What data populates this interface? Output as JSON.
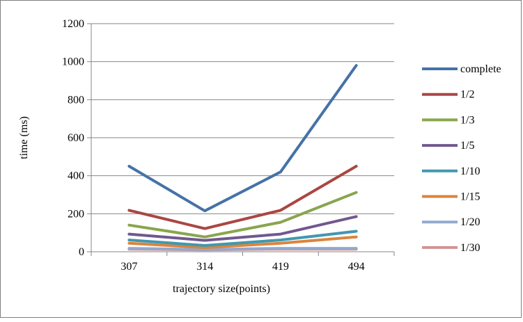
{
  "chart_data": {
    "type": "line",
    "title": "",
    "xlabel": "trajectory size(points)",
    "ylabel": "time (ms)",
    "categories": [
      "307",
      "314",
      "419",
      "494"
    ],
    "ylim": [
      0,
      1200
    ],
    "yticks": [
      0,
      200,
      400,
      600,
      800,
      1000,
      1200
    ],
    "grid": true,
    "legend_position": "right",
    "series": [
      {
        "name": "complete",
        "color": "#4572A7",
        "values": [
          450,
          215,
          420,
          980
        ]
      },
      {
        "name": "1/2",
        "color": "#AA4643",
        "values": [
          218,
          122,
          218,
          450
        ]
      },
      {
        "name": "1/3",
        "color": "#89A54E",
        "values": [
          140,
          78,
          155,
          312
        ]
      },
      {
        "name": "1/5",
        "color": "#71588F",
        "values": [
          93,
          60,
          93,
          185
        ]
      },
      {
        "name": "1/10",
        "color": "#4198AF",
        "values": [
          62,
          33,
          62,
          108
        ]
      },
      {
        "name": "1/15",
        "color": "#DB843D",
        "values": [
          45,
          22,
          45,
          78
        ]
      },
      {
        "name": "1/20",
        "color": "#93A9CF",
        "values": [
          18,
          12,
          18,
          18
        ]
      },
      {
        "name": "1/30",
        "color": "#D19392",
        "values": [
          14,
          10,
          14,
          14
        ]
      }
    ]
  }
}
